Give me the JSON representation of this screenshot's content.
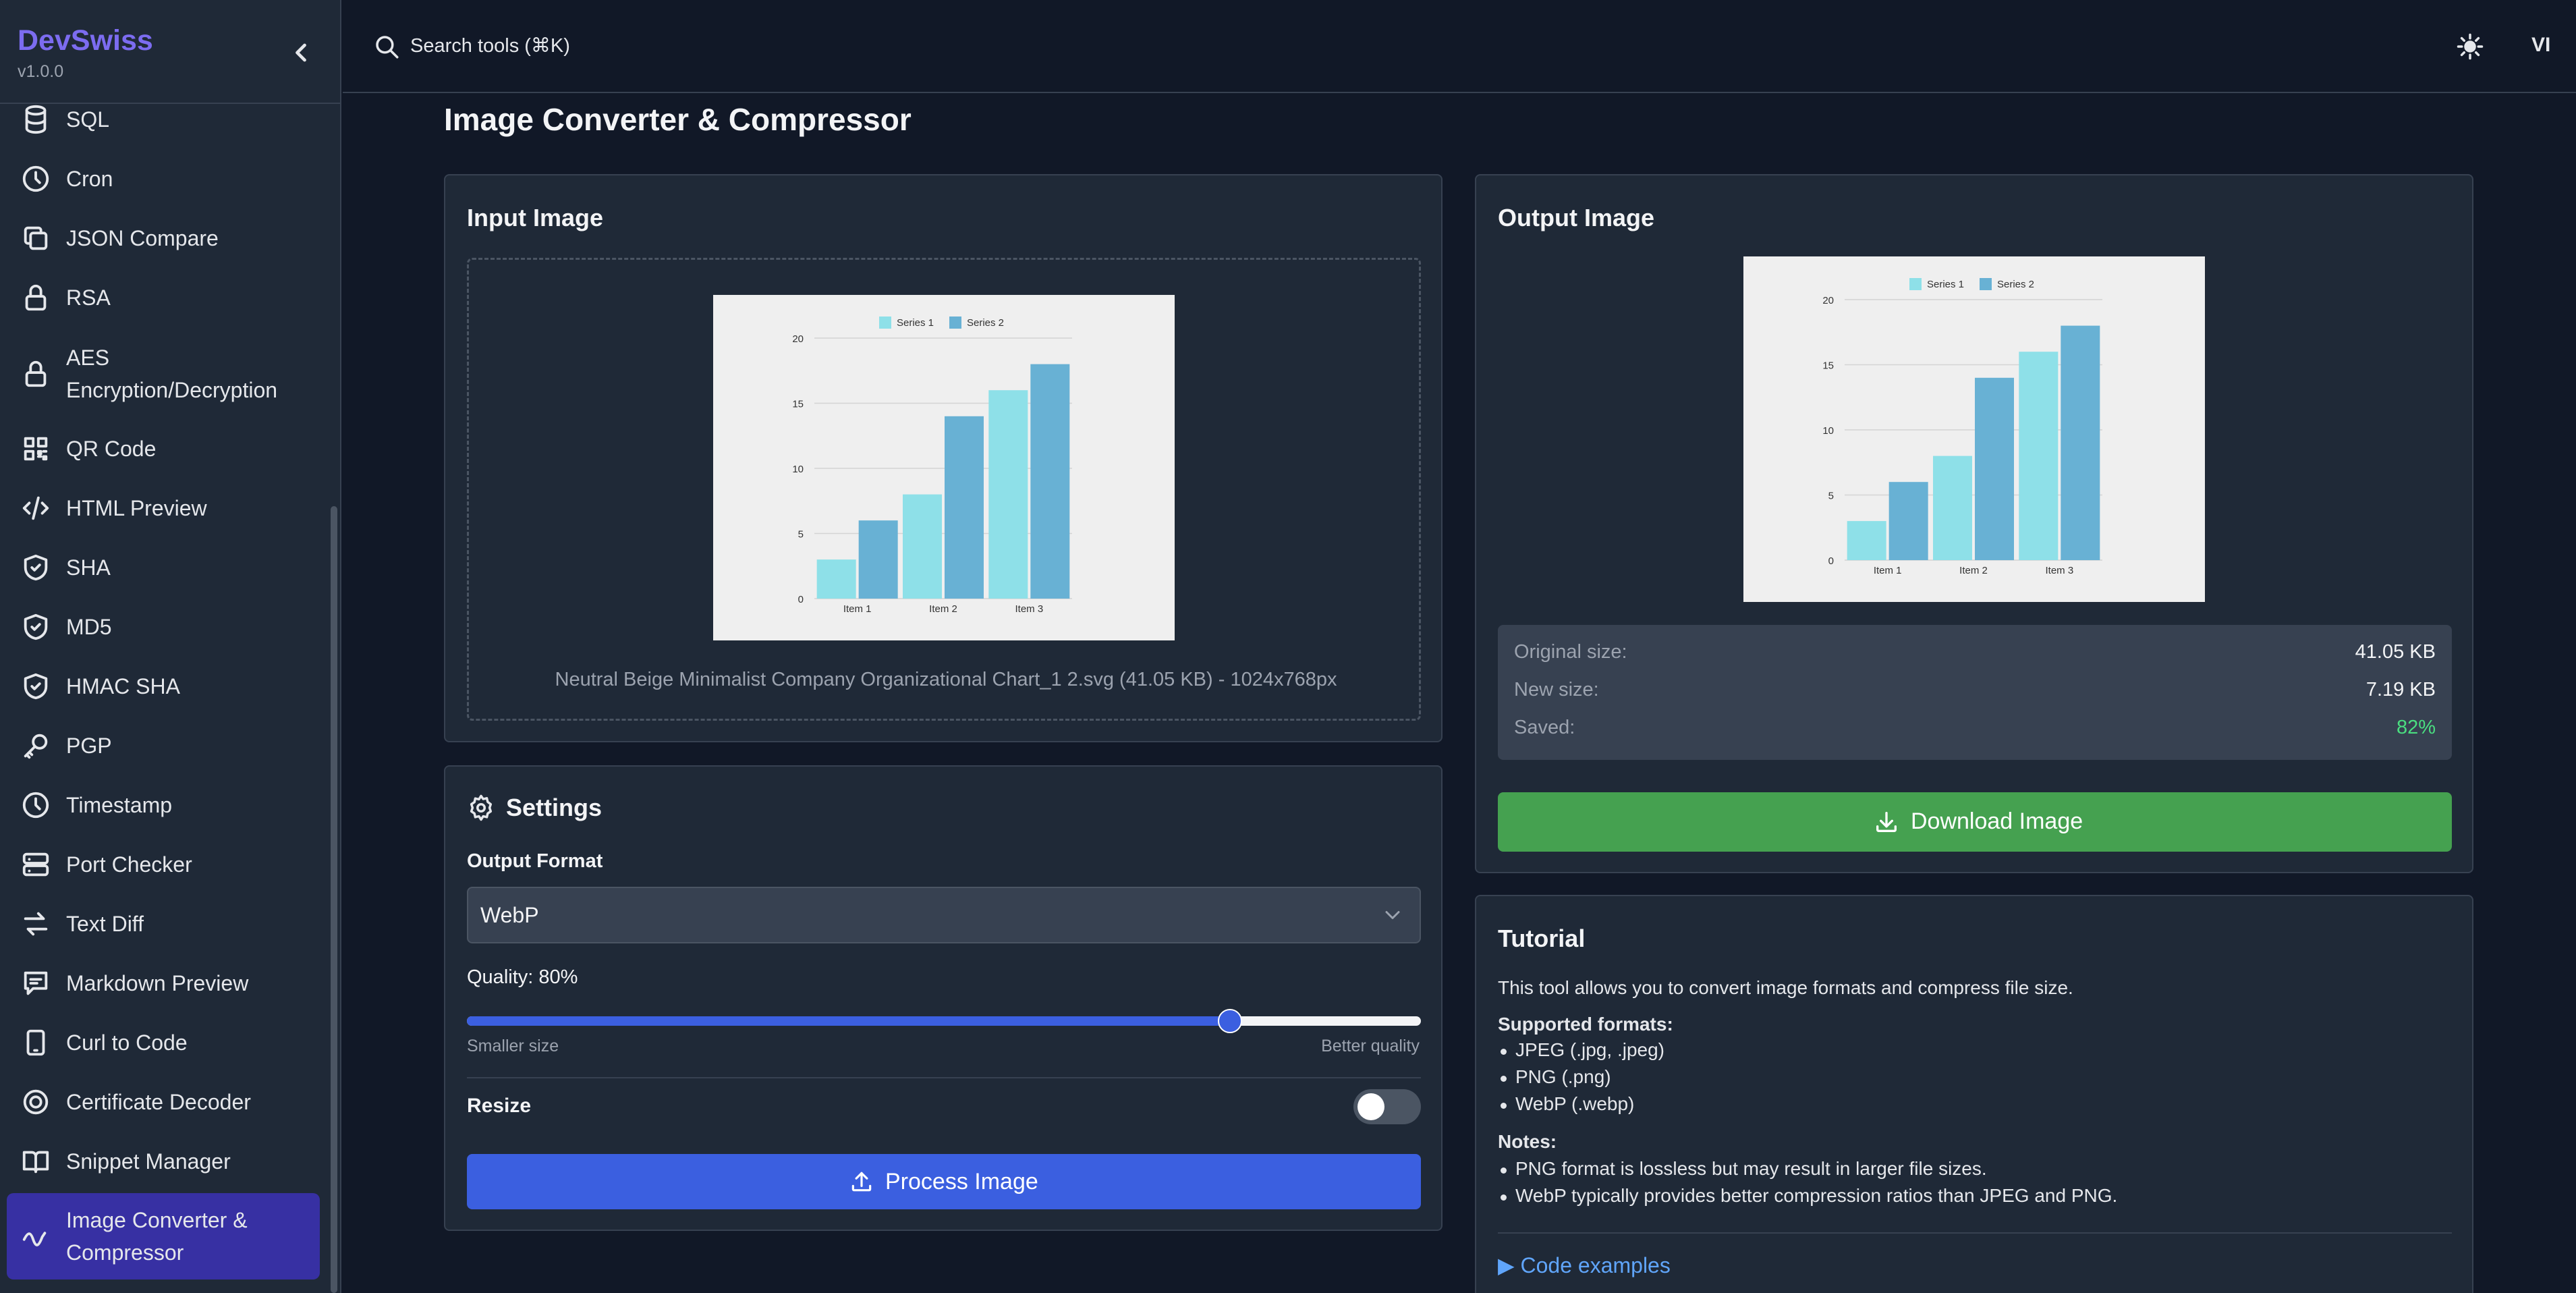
{
  "app": {
    "name": "DevSwiss",
    "version": "v1.0.0"
  },
  "sidebar": {
    "items": [
      {
        "label": "SQL",
        "icon": "database-icon"
      },
      {
        "label": "Cron",
        "icon": "clock-icon"
      },
      {
        "label": "JSON Compare",
        "icon": "copy-icon"
      },
      {
        "label": "RSA",
        "icon": "lock-icon"
      },
      {
        "label": "AES Encryption/Decryption",
        "line1": "AES",
        "line2": "Encryption/Decryption",
        "icon": "lock-icon"
      },
      {
        "label": "QR Code",
        "icon": "qr-code-icon"
      },
      {
        "label": "HTML Preview",
        "icon": "code-icon"
      },
      {
        "label": "SHA",
        "icon": "shield-check-icon"
      },
      {
        "label": "MD5",
        "icon": "shield-check-icon"
      },
      {
        "label": "HMAC SHA",
        "icon": "shield-check-icon"
      },
      {
        "label": "PGP",
        "icon": "key-icon"
      },
      {
        "label": "Timestamp",
        "icon": "clock-icon"
      },
      {
        "label": "Port Checker",
        "icon": "server-icon"
      },
      {
        "label": "Text Diff",
        "icon": "arrows-exchange-icon"
      },
      {
        "label": "Markdown Preview",
        "icon": "message-icon"
      },
      {
        "label": "Curl to Code",
        "icon": "device-icon"
      },
      {
        "label": "Certificate Decoder",
        "icon": "certificate-icon"
      },
      {
        "label": "Snippet Manager",
        "icon": "book-icon"
      },
      {
        "label": "Image Converter & Compressor",
        "line1": "Image Converter &",
        "line2": "Compressor",
        "icon": "wave-icon",
        "active": true
      }
    ]
  },
  "topbar": {
    "search_placeholder": "Search tools (⌘K)",
    "language": "VI"
  },
  "page": {
    "title": "Image Converter & Compressor"
  },
  "input": {
    "title": "Input Image",
    "file_info": "Neutral Beige Minimalist Company Organizational Chart_1 2.svg (41.05 KB) - 1024x768px"
  },
  "settings": {
    "title": "Settings",
    "format_label": "Output Format",
    "format_value": "WebP",
    "quality_label": "Quality: 80%",
    "quality_value": 80,
    "slider_min_label": "Smaller size",
    "slider_max_label": "Better quality",
    "resize_label": "Resize",
    "resize_on": false,
    "process_label": "Process Image"
  },
  "output": {
    "title": "Output Image",
    "stats": [
      {
        "label": "Original size:",
        "value": "41.05 KB"
      },
      {
        "label": "New size:",
        "value": "7.19 KB"
      },
      {
        "label": "Saved:",
        "value": "82%"
      }
    ],
    "saved_color": "#4ade80",
    "download_label": "Download Image"
  },
  "tutorial": {
    "title": "Tutorial",
    "intro": "This tool allows you to convert image formats and compress file size.",
    "formats_heading": "Supported formats:",
    "formats": [
      "JPEG (.jpg, .jpeg)",
      "PNG (.png)",
      "WebP (.webp)"
    ],
    "notes_heading": "Notes:",
    "notes": [
      "PNG format is lossless but may result in larger file sizes.",
      "WebP typically provides better compression ratios than JPEG and PNG."
    ],
    "code_examples": "▶ Code examples"
  },
  "chart_data": {
    "type": "bar",
    "categories": [
      "Item 1",
      "Item 2",
      "Item 3"
    ],
    "series": [
      {
        "name": "Series 1",
        "values": [
          3,
          8,
          16
        ],
        "color": "#8ee0e8"
      },
      {
        "name": "Series 2",
        "values": [
          6,
          14,
          18
        ],
        "color": "#68b1d4"
      }
    ],
    "yticks": [
      "0",
      "5",
      "10",
      "15",
      "20"
    ],
    "ylim": [
      0,
      20
    ],
    "legend": "top"
  }
}
